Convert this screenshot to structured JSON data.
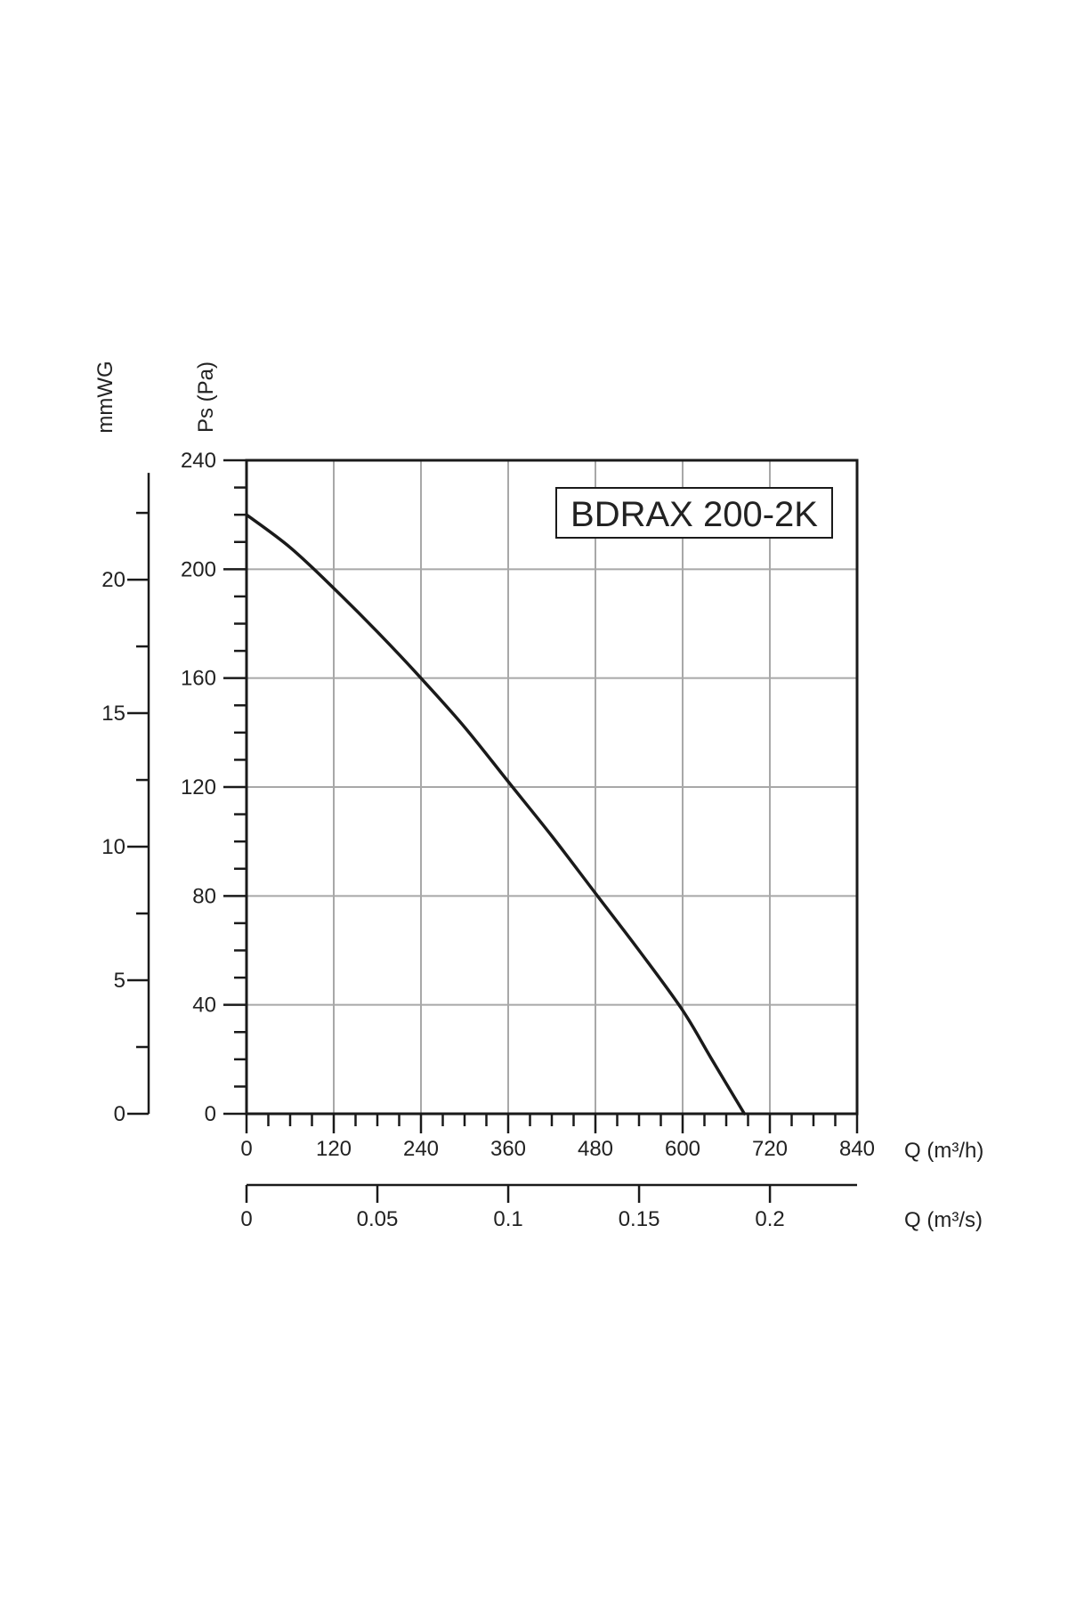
{
  "chart_data": {
    "type": "line",
    "title": "BDRAX  200-2K",
    "x_axis": {
      "label": "Q (m³/h)",
      "range": [
        0,
        840
      ],
      "major_ticks": [
        0,
        120,
        240,
        360,
        480,
        600,
        720,
        840
      ],
      "minor_step": 30,
      "grid": true
    },
    "x2_axis": {
      "label": "Q (m³/s)",
      "range": [
        0,
        0.2333
      ],
      "major_ticks": [
        0,
        0.05,
        0.1,
        0.15,
        0.2
      ],
      "tick_labels": [
        "0",
        "0.05",
        "0.1",
        "0.15",
        "0.2"
      ],
      "minor_step": 0.025
    },
    "y_axis": {
      "label": "Ps (Pa)",
      "range": [
        0,
        240
      ],
      "major_ticks": [
        0,
        40,
        80,
        120,
        160,
        200,
        240
      ],
      "minor_step": 10,
      "grid": true
    },
    "y2_axis": {
      "label": "mmWG",
      "range": [
        0,
        24.47
      ],
      "major_ticks": [
        0,
        5,
        10,
        15,
        20
      ],
      "minor_step": 2.5
    },
    "series": [
      {
        "x": [
          0,
          60,
          120,
          180,
          240,
          300,
          360,
          420,
          480,
          540,
          600,
          640,
          685
        ],
        "y": [
          220,
          208,
          193,
          177,
          160,
          142,
          122,
          102,
          81,
          60,
          38,
          20,
          0
        ]
      }
    ],
    "colors": {
      "line": "#1a1a1a",
      "grid": "#a8a8a8",
      "axis": "#1a1a1a"
    }
  }
}
